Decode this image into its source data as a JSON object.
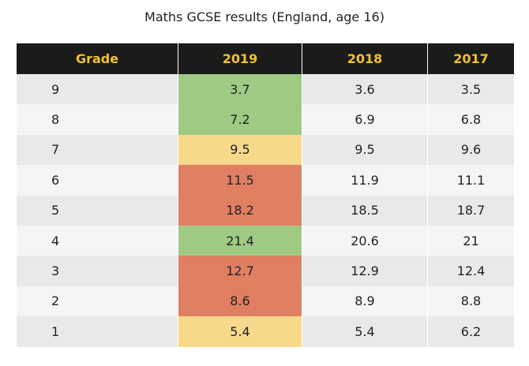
{
  "chart_data": {
    "type": "table",
    "title": "Maths GCSE results (England, age 16)",
    "columns": [
      "Grade",
      "2019",
      "2018",
      "2017"
    ],
    "rows": [
      {
        "grade": "9",
        "y2019": "3.7",
        "y2018": "3.6",
        "y2017": "3.5",
        "status": "green"
      },
      {
        "grade": "8",
        "y2019": "7.2",
        "y2018": "6.9",
        "y2017": "6.8",
        "status": "green"
      },
      {
        "grade": "7",
        "y2019": "9.5",
        "y2018": "9.5",
        "y2017": "9.6",
        "status": "yellow"
      },
      {
        "grade": "6",
        "y2019": "11.5",
        "y2018": "11.9",
        "y2017": "11.1",
        "status": "red"
      },
      {
        "grade": "5",
        "y2019": "18.2",
        "y2018": "18.5",
        "y2017": "18.7",
        "status": "red"
      },
      {
        "grade": "4",
        "y2019": "21.4",
        "y2018": "20.6",
        "y2017": "21",
        "status": "green"
      },
      {
        "grade": "3",
        "y2019": "12.7",
        "y2018": "12.9",
        "y2017": "12.4",
        "status": "red"
      },
      {
        "grade": "2",
        "y2019": "8.6",
        "y2018": "8.9",
        "y2017": "8.8",
        "status": "red"
      },
      {
        "grade": "1",
        "y2019": "5.4",
        "y2018": "5.4",
        "y2017": "6.2",
        "status": "yellow"
      }
    ],
    "colors": {
      "green": "#9fca84",
      "yellow": "#f8d98b",
      "red": "#e17f63",
      "header_bg": "#1b1b19",
      "header_text": "#f2c12e"
    }
  }
}
